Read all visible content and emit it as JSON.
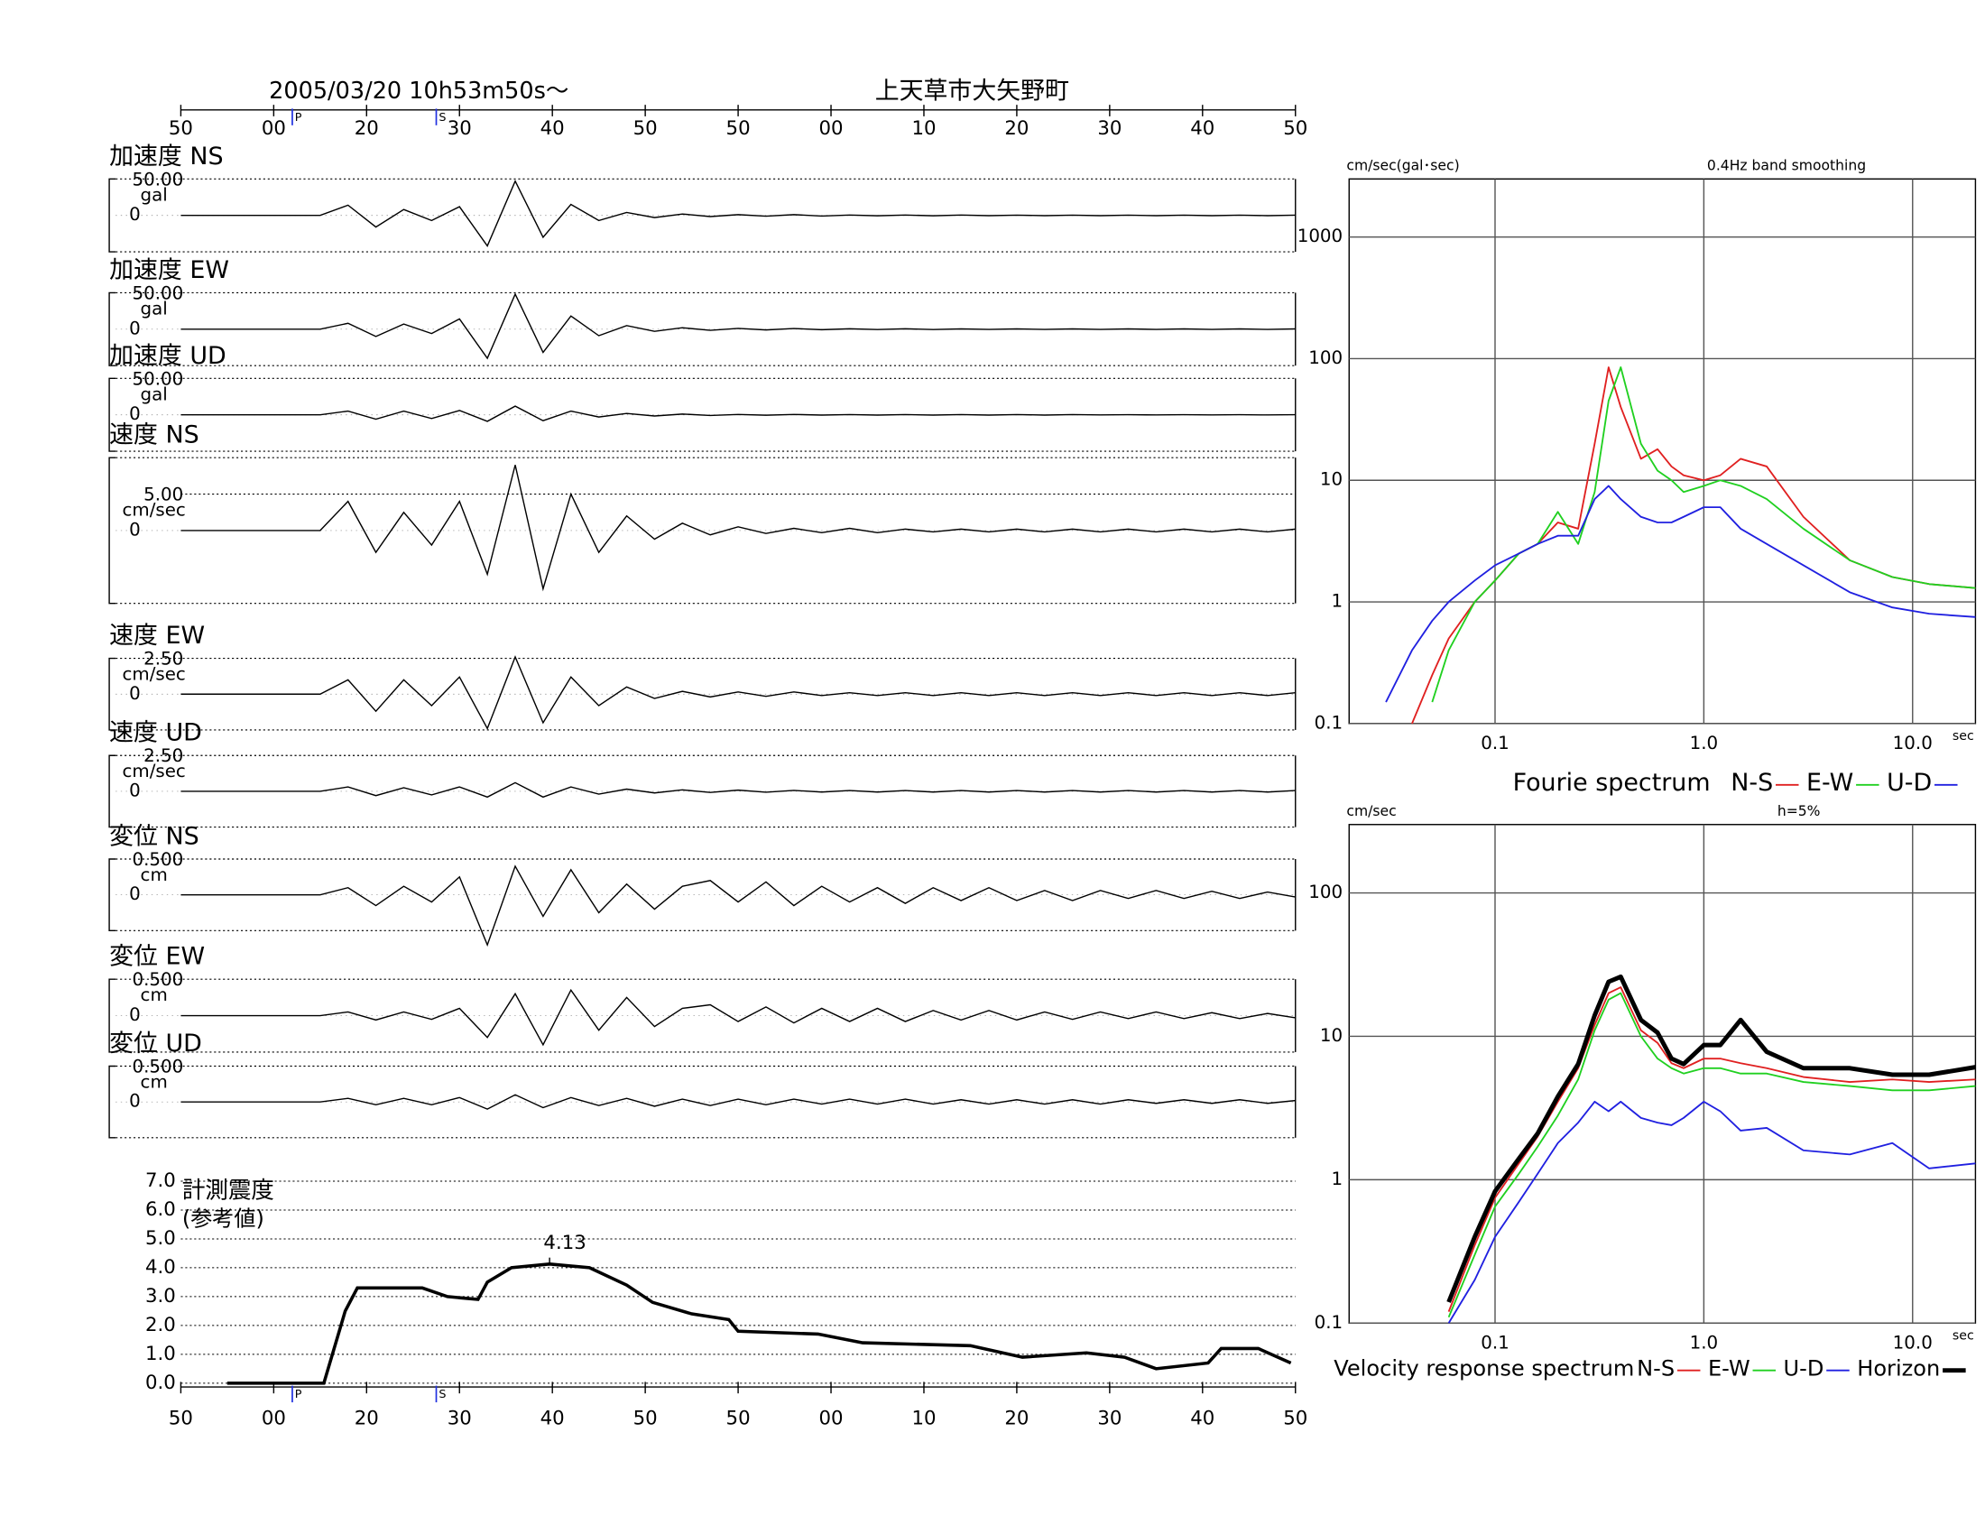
{
  "chart_data": [
    {
      "type": "waveform",
      "title": "上天草市大矢野町",
      "subtitle": "2005/03/20  10h53m50s〜",
      "xlim": [
        0,
        120
      ],
      "xticks": [
        {
          "value": 0,
          "label": "50"
        },
        {
          "value": 10,
          "label": "00"
        },
        20,
        30,
        40,
        50,
        {
          "value": 60,
          "label": "50"
        },
        {
          "value": 70,
          "label": "00"
        },
        {
          "value": 80,
          "label": "10"
        },
        {
          "value": 90,
          "label": "20"
        },
        {
          "value": 100,
          "label": "30"
        },
        {
          "value": 110,
          "label": "40"
        },
        {
          "value": 120,
          "label": "50"
        }
      ],
      "phase_markers": [
        {
          "label": "P",
          "x": 12
        },
        {
          "label": "S",
          "x": 27.5
        }
      ],
      "x": [
        0,
        3,
        6,
        9,
        12,
        15,
        18,
        21,
        24,
        27,
        30,
        33,
        36,
        39,
        42,
        45,
        48,
        51,
        54,
        57,
        60,
        63,
        66,
        69,
        72,
        75,
        78,
        81,
        84,
        87,
        90,
        93,
        96,
        99,
        102,
        105,
        108,
        111,
        114,
        117,
        120
      ],
      "panels": [
        {
          "name": "加速度 NS",
          "unit": "gal",
          "color": "#000000",
          "ylim": [
            -50,
            50
          ],
          "yticks": [
            {
              "value": 50,
              "label": "50.00"
            },
            0
          ],
          "values": [
            0,
            0,
            0,
            0,
            0,
            0,
            14,
            -16,
            8,
            -7,
            12,
            -42,
            47,
            -30,
            15,
            -7,
            4,
            -3,
            2,
            -1.5,
            1,
            -1,
            1,
            -0.8,
            0.6,
            -0.6,
            0.5,
            -0.5,
            0.5,
            -0.4,
            0.4,
            -0.4,
            0.4,
            -0.3,
            0.3,
            -0.3,
            0.3,
            -0.3,
            0.3,
            -0.3,
            0.3
          ]
        },
        {
          "name": "加速度 EW",
          "unit": "gal",
          "color": "#000000",
          "ylim": [
            -50,
            50
          ],
          "yticks": [
            {
              "value": 50,
              "label": "50.00"
            },
            0
          ],
          "values": [
            0,
            0,
            0,
            0,
            0,
            0,
            8,
            -10,
            7,
            -6,
            14,
            -40,
            48,
            -32,
            18,
            -9,
            5,
            -3,
            2,
            -1.5,
            1,
            -1,
            0.8,
            -0.7,
            0.6,
            -0.5,
            0.5,
            -0.5,
            0.4,
            -0.4,
            0.4,
            -0.4,
            0.3,
            -0.3,
            0.3,
            -0.3,
            0.3,
            -0.3,
            0.3,
            -0.3,
            0.3
          ]
        },
        {
          "name": "加速度 UD",
          "unit": "gal",
          "color": "#000000",
          "ylim": [
            -50,
            50
          ],
          "yticks": [
            {
              "value": 50,
              "label": "50.00"
            },
            0
          ],
          "values": [
            0,
            0,
            0,
            0,
            0,
            0,
            5,
            -6,
            5,
            -5,
            6,
            -9,
            12,
            -8,
            5,
            -3,
            2,
            -1.5,
            1,
            -0.8,
            0.6,
            -0.5,
            0.5,
            -0.4,
            0.4,
            -0.3,
            0.3,
            -0.3,
            0.3,
            -0.3,
            0.3,
            -0.3,
            0.3,
            -0.2,
            0.2,
            -0.2,
            0.2,
            -0.2,
            0.2,
            -0.2,
            0.2
          ]
        },
        {
          "name": "速度 NS",
          "unit": "cm/sec",
          "color": "#000000",
          "ylim": [
            -10,
            10
          ],
          "yticks": [
            {
              "value": 5,
              "label": "5.00"
            },
            0
          ],
          "values": [
            0,
            0,
            0,
            0,
            0,
            0,
            4,
            -3,
            2.5,
            -2,
            4,
            -6,
            9,
            -8,
            5,
            -3,
            2,
            -1.2,
            1,
            -0.6,
            0.5,
            -0.4,
            0.3,
            -0.3,
            0.3,
            -0.3,
            0.2,
            -0.2,
            0.2,
            -0.2,
            0.2,
            -0.2,
            0.2,
            -0.2,
            0.2,
            -0.2,
            0.2,
            -0.2,
            0.2,
            -0.2,
            0.2
          ]
        },
        {
          "name": "速度 EW",
          "unit": "cm/sec",
          "color": "#000000",
          "ylim": [
            -2.5,
            2.5
          ],
          "yticks": [
            {
              "value": 2.5,
              "label": "2.50"
            },
            0
          ],
          "values": [
            0,
            0,
            0,
            0,
            0,
            0,
            1,
            -1.2,
            1,
            -0.8,
            1.2,
            -2.4,
            2.6,
            -2,
            1.2,
            -0.8,
            0.5,
            -0.3,
            0.2,
            -0.2,
            0.15,
            -0.15,
            0.15,
            -0.1,
            0.1,
            -0.1,
            0.1,
            -0.1,
            0.1,
            -0.1,
            0.1,
            -0.1,
            0.1,
            -0.1,
            0.1,
            -0.1,
            0.1,
            -0.1,
            0.1,
            -0.1,
            0.1
          ]
        },
        {
          "name": "速度 UD",
          "unit": "cm/sec",
          "color": "#000000",
          "ylim": [
            -2.5,
            2.5
          ],
          "yticks": [
            {
              "value": 2.5,
              "label": "2.50"
            },
            0
          ],
          "values": [
            0,
            0,
            0,
            0,
            0,
            0,
            0.3,
            -0.3,
            0.25,
            -0.25,
            0.3,
            -0.4,
            0.6,
            -0.4,
            0.3,
            -0.2,
            0.15,
            -0.12,
            0.1,
            -0.08,
            0.08,
            -0.06,
            0.06,
            -0.05,
            0.05,
            -0.05,
            0.05,
            -0.05,
            0.05,
            -0.05,
            0.05,
            -0.05,
            0.05,
            -0.05,
            0.05,
            -0.05,
            0.05,
            -0.05,
            0.05,
            -0.05,
            0.05
          ]
        },
        {
          "name": "変位 NS",
          "unit": "cm",
          "color": "#000000",
          "ylim": [
            -0.5,
            0.5
          ],
          "yticks": [
            {
              "value": 0.5,
              "label": "0.500"
            },
            0
          ],
          "values": [
            0,
            0,
            0,
            0,
            0,
            0,
            0.1,
            -0.15,
            0.12,
            -0.1,
            0.25,
            -0.7,
            0.4,
            -0.3,
            0.35,
            -0.25,
            0.15,
            -0.2,
            0.12,
            0.2,
            -0.1,
            0.18,
            -0.15,
            0.12,
            -0.1,
            0.1,
            -0.12,
            0.1,
            -0.08,
            0.1,
            -0.08,
            0.06,
            -0.08,
            0.06,
            -0.05,
            0.06,
            -0.05,
            0.05,
            -0.05,
            0.04,
            -0.03
          ]
        },
        {
          "name": "変位 EW",
          "unit": "cm",
          "color": "#000000",
          "ylim": [
            -0.5,
            0.5
          ],
          "yticks": [
            {
              "value": 0.5,
              "label": "0.500"
            },
            0
          ],
          "values": [
            0,
            0,
            0,
            0,
            0,
            0,
            0.05,
            -0.06,
            0.05,
            -0.05,
            0.1,
            -0.3,
            0.3,
            -0.4,
            0.35,
            -0.2,
            0.25,
            -0.15,
            0.1,
            0.15,
            -0.08,
            0.12,
            -0.1,
            0.1,
            -0.08,
            0.1,
            -0.08,
            0.07,
            -0.06,
            0.07,
            -0.06,
            0.05,
            -0.05,
            0.05,
            -0.04,
            0.05,
            -0.04,
            0.04,
            -0.04,
            0.03,
            -0.03
          ]
        },
        {
          "name": "変位 UD",
          "unit": "cm",
          "color": "#000000",
          "ylim": [
            -0.5,
            0.5
          ],
          "yticks": [
            {
              "value": 0.5,
              "label": "0.500"
            },
            0
          ],
          "values": [
            0,
            0,
            0,
            0,
            0,
            0,
            0.05,
            -0.04,
            0.05,
            -0.04,
            0.06,
            -0.1,
            0.1,
            -0.08,
            0.06,
            -0.05,
            0.05,
            -0.06,
            0.04,
            -0.05,
            0.04,
            -0.04,
            0.04,
            -0.03,
            0.04,
            -0.03,
            0.04,
            -0.03,
            0.03,
            -0.03,
            0.03,
            -0.03,
            0.03,
            -0.03,
            0.03,
            -0.02,
            0.03,
            -0.02,
            0.03,
            -0.02,
            0.02
          ]
        }
      ]
    },
    {
      "type": "intensity",
      "title": "計測震度",
      "subtitle": "(参考値)",
      "xlim": [
        0,
        120
      ],
      "xticks": [
        {
          "value": 0,
          "label": "50"
        },
        {
          "value": 10,
          "label": "00"
        },
        20,
        30,
        40,
        50,
        {
          "value": 60,
          "label": "50"
        },
        {
          "value": 70,
          "label": "00"
        },
        {
          "value": 80,
          "label": "10"
        },
        {
          "value": 90,
          "label": "20"
        },
        {
          "value": 100,
          "label": "30"
        },
        {
          "value": 110,
          "label": "40"
        },
        {
          "value": 120,
          "label": "50"
        }
      ],
      "phase_markers": [
        {
          "label": "P",
          "x": 12
        },
        {
          "label": "S",
          "x": 27.5
        }
      ],
      "ylim": [
        0,
        7
      ],
      "yticks": [
        {
          "value": 0,
          "label": "0.0"
        },
        {
          "value": 1,
          "label": "1.0"
        },
        {
          "value": 2,
          "label": "2.0"
        },
        {
          "value": 3,
          "label": "3.0"
        },
        {
          "value": 4,
          "label": "4.0"
        },
        {
          "value": 5,
          "label": "5.0"
        },
        {
          "value": 6,
          "label": "6.0"
        },
        {
          "value": 7,
          "label": "7.0"
        }
      ],
      "grid": true,
      "color": "#000000",
      "x": [
        5,
        15.4,
        17.7,
        19,
        26,
        28.7,
        32,
        33,
        35.6,
        39.7,
        44,
        48,
        50.8,
        55,
        59,
        60,
        68.6,
        73.4,
        85,
        90.6,
        97.5,
        101.6,
        105,
        110.6,
        112,
        116,
        119.5
      ],
      "values": [
        0,
        0,
        2.5,
        3.3,
        3.3,
        3.0,
        2.9,
        3.5,
        4.0,
        4.13,
        4.0,
        3.4,
        2.8,
        2.4,
        2.2,
        1.8,
        1.7,
        1.4,
        1.3,
        0.9,
        1.05,
        0.9,
        0.5,
        0.7,
        1.2,
        1.2,
        0.7
      ],
      "peak_x": 39.7,
      "peak": 4.13
    },
    {
      "type": "logline",
      "title": "Fourie spectrum",
      "y_unit": "cm/sec(gal･sec)",
      "note": "0.4Hz band smoothing",
      "x_unit": "sec",
      "log_x": true,
      "log_y": true,
      "xlim": [
        0.02,
        20
      ],
      "ylim": [
        0.1,
        3000
      ],
      "xticks": [
        0.1,
        {
          "value": 1,
          "label": "1.0"
        },
        {
          "value": 10,
          "label": "10.0"
        }
      ],
      "yticks": [
        0.1,
        1,
        10,
        100,
        1000
      ],
      "grid": true,
      "x": [
        0.03,
        0.04,
        0.05,
        0.06,
        0.08,
        0.1,
        0.13,
        0.16,
        0.2,
        0.25,
        0.3,
        0.35,
        0.4,
        0.5,
        0.6,
        0.7,
        0.8,
        1.0,
        1.2,
        1.5,
        2,
        3,
        5,
        8,
        12,
        20
      ],
      "series": [
        {
          "name": "N-S",
          "color": "#e02020",
          "width": 1.3,
          "values": [
            null,
            0.1,
            0.25,
            0.5,
            1.0,
            1.5,
            2.5,
            3,
            4.5,
            4,
            20,
            85,
            40,
            15,
            18,
            13,
            11,
            10,
            11,
            15,
            13,
            5,
            2.2,
            1.6,
            1.4,
            1.3
          ]
        },
        {
          "name": "E-W",
          "color": "#20d020",
          "width": 1.3,
          "values": [
            null,
            null,
            0.15,
            0.4,
            1,
            1.5,
            2.5,
            3,
            5.5,
            3,
            8,
            45,
            85,
            20,
            12,
            10,
            8,
            9,
            10,
            9,
            7,
            4,
            2.2,
            1.6,
            1.4,
            1.3
          ]
        },
        {
          "name": "U-D",
          "color": "#2020e0",
          "width": 1.3,
          "values": [
            0.15,
            0.4,
            0.7,
            1.0,
            1.5,
            2,
            2.5,
            3,
            3.5,
            3.5,
            7,
            9,
            7,
            5,
            4.5,
            4.5,
            5,
            6,
            6,
            4,
            3,
            2,
            1.2,
            0.9,
            0.8,
            0.75
          ]
        }
      ]
    },
    {
      "type": "logline",
      "title": "Velocity response spectrum",
      "y_unit": "cm/sec",
      "note": "h=5%",
      "x_unit": "sec",
      "log_x": true,
      "log_y": true,
      "xlim": [
        0.02,
        20
      ],
      "ylim": [
        0.1,
        300
      ],
      "xticks": [
        0.1,
        {
          "value": 1,
          "label": "1.0"
        },
        {
          "value": 10,
          "label": "10.0"
        }
      ],
      "yticks": [
        0.1,
        1,
        10,
        100
      ],
      "grid": true,
      "x": [
        0.06,
        0.08,
        0.1,
        0.13,
        0.16,
        0.2,
        0.25,
        0.3,
        0.35,
        0.4,
        0.5,
        0.6,
        0.7,
        0.8,
        1.0,
        1.2,
        1.5,
        2,
        3,
        5,
        8,
        12,
        20
      ],
      "series": [
        {
          "name": "N-S",
          "color": "#e02020",
          "width": 1.3,
          "values": [
            0.12,
            0.35,
            0.75,
            1.3,
            2,
            3.5,
            6,
            12,
            20,
            22,
            11,
            9,
            6.5,
            6,
            7,
            7,
            6.5,
            6,
            5.2,
            4.8,
            5,
            4.8,
            5
          ]
        },
        {
          "name": "E-W",
          "color": "#20d020",
          "width": 1.3,
          "values": [
            0.11,
            0.3,
            0.65,
            1.1,
            1.7,
            2.8,
            5,
            11,
            18,
            20,
            10,
            7,
            6,
            5.5,
            6,
            6,
            5.5,
            5.5,
            4.8,
            4.5,
            4.2,
            4.2,
            4.5
          ]
        },
        {
          "name": "U-D",
          "color": "#2020e0",
          "width": 1.3,
          "values": [
            0.1,
            0.2,
            0.4,
            0.7,
            1.1,
            1.8,
            2.5,
            3.5,
            3,
            3.5,
            2.7,
            2.5,
            2.4,
            2.7,
            3.5,
            3,
            2.2,
            2.3,
            1.6,
            1.5,
            1.8,
            1.2,
            1.3
          ]
        },
        {
          "name": "Horizon",
          "color": "#000000",
          "width": 3.5,
          "values": [
            0.14,
            0.4,
            0.83,
            1.4,
            2.1,
            3.8,
            6.4,
            14,
            24,
            26,
            13,
            10.6,
            7,
            6.4,
            8.7,
            8.7,
            13,
            7.8,
            6,
            6,
            5.4,
            5.4,
            6.1
          ]
        }
      ]
    }
  ]
}
